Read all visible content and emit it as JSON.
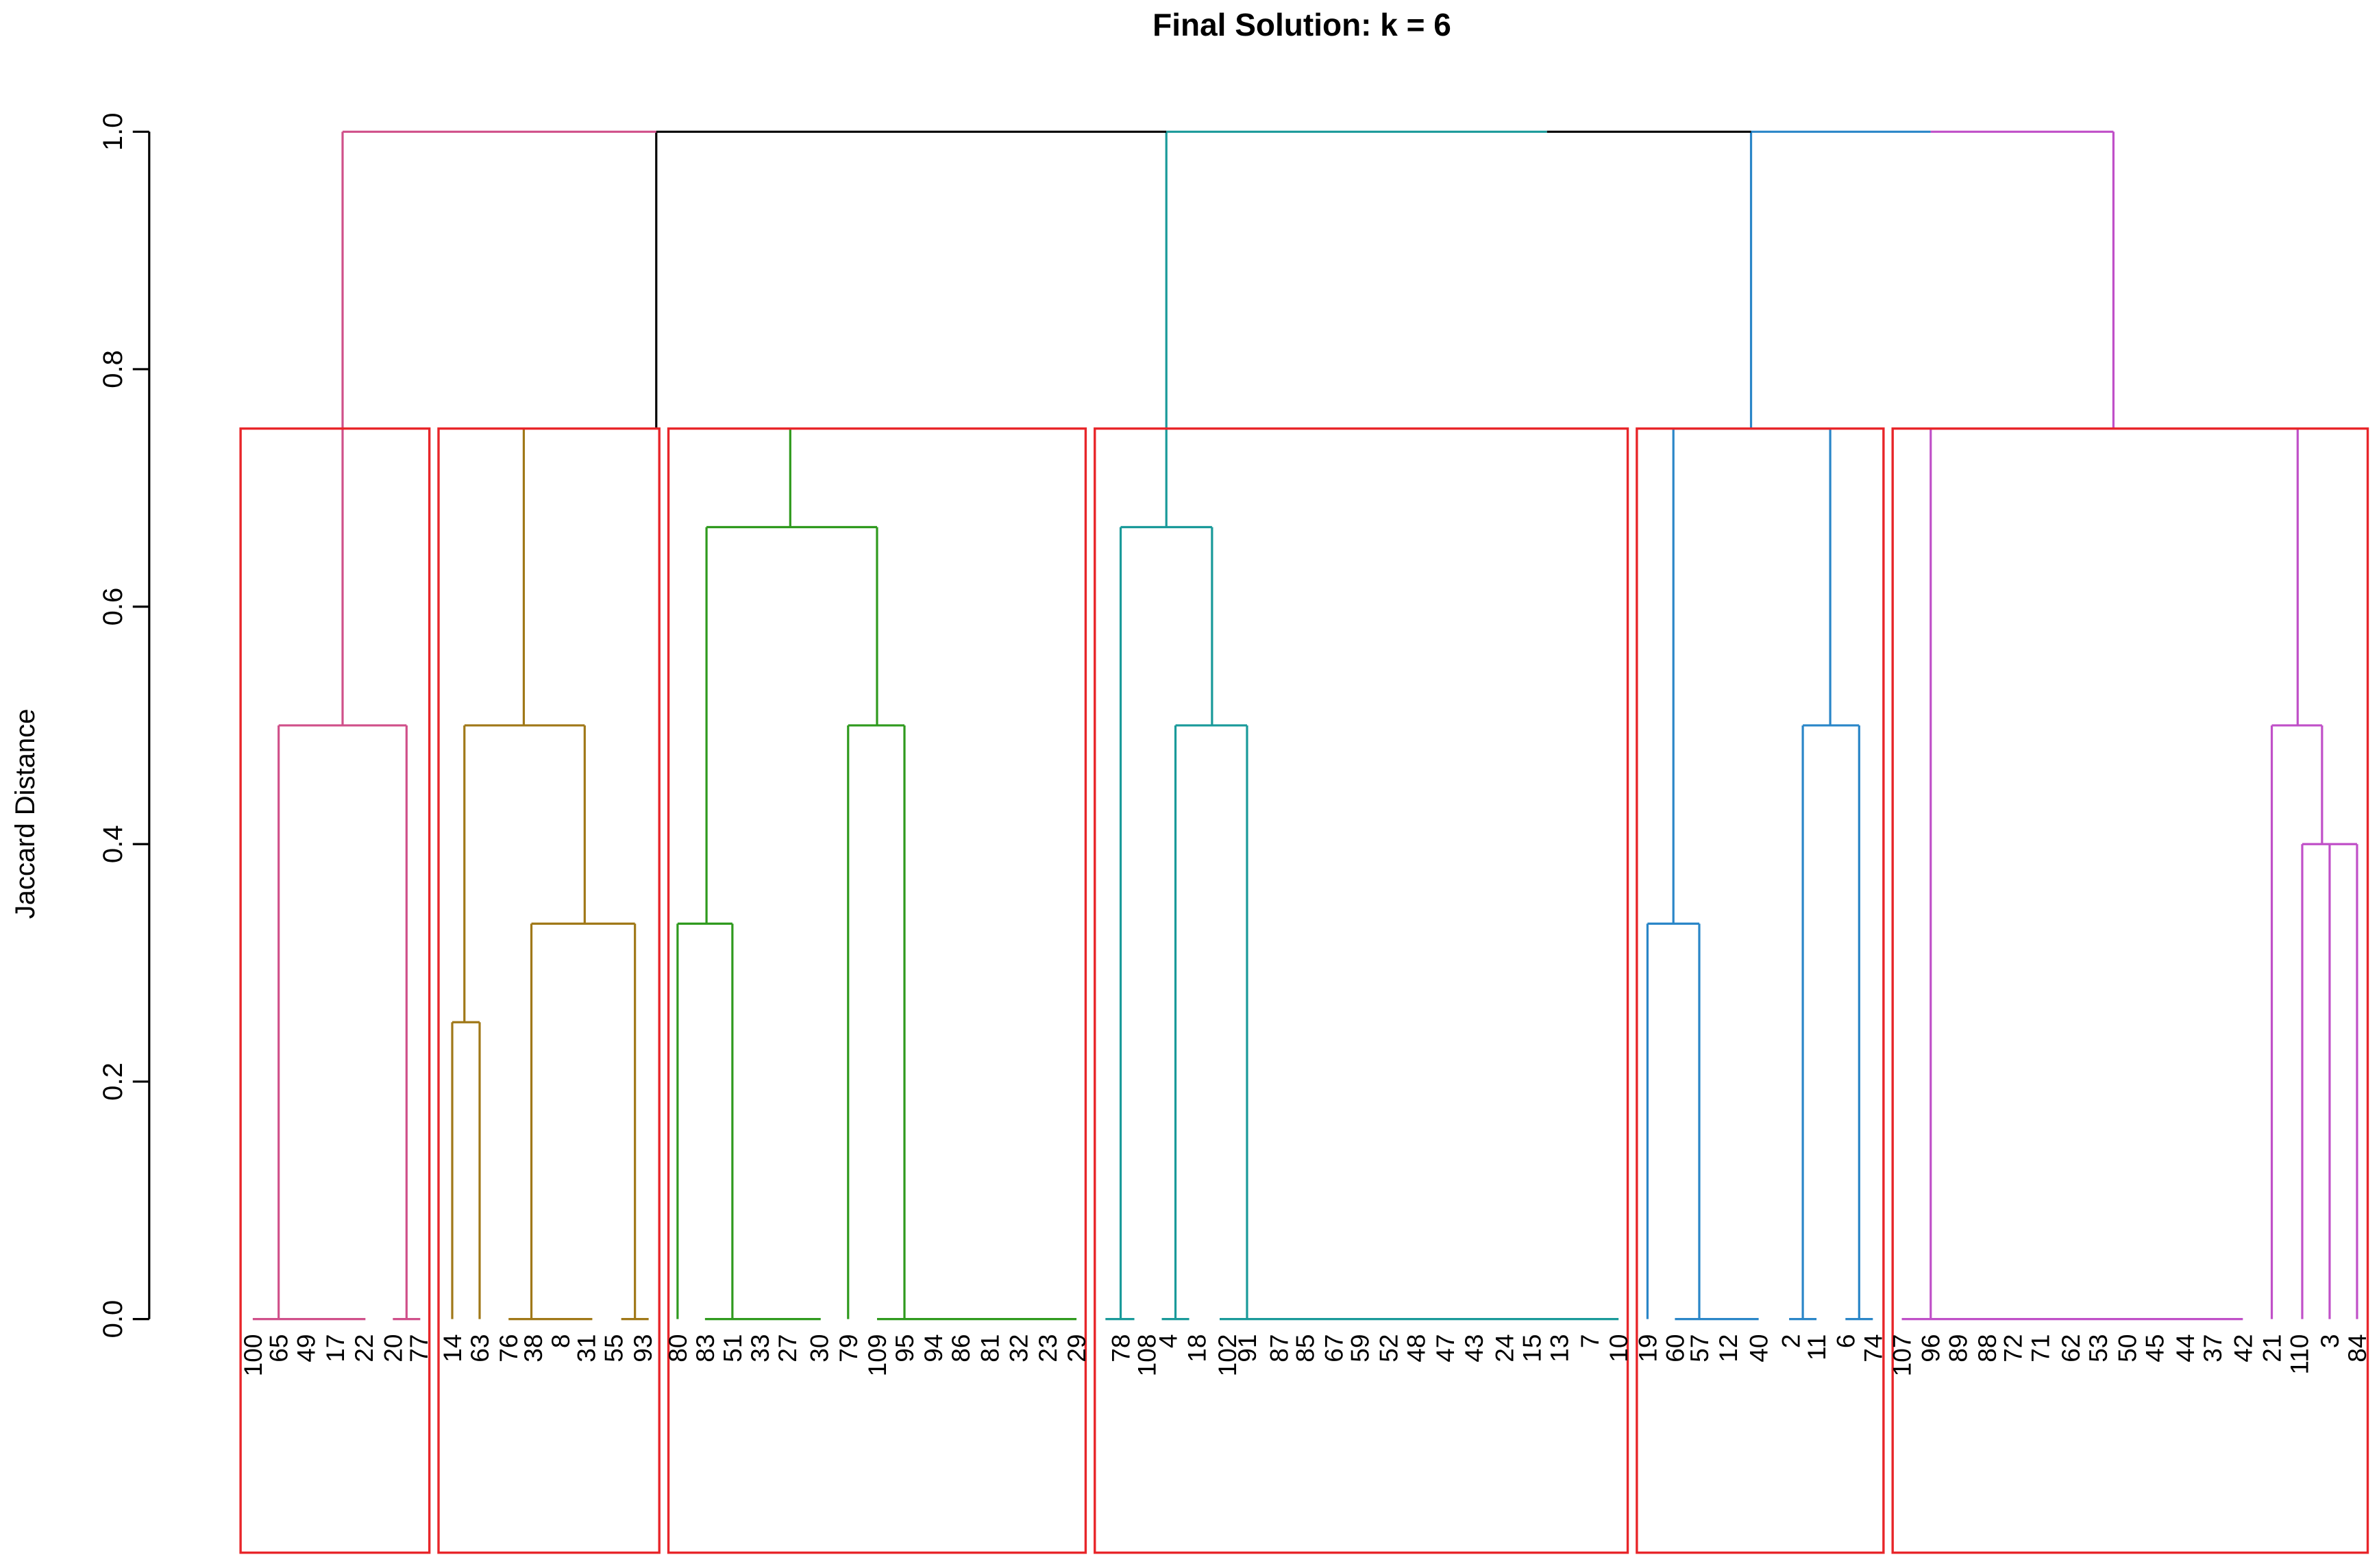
{
  "chart_data": {
    "type": "dendrogram",
    "title": "Final Solution: k = 6",
    "ylabel": "Jaccard Distance",
    "ylim": [
      0,
      1.0
    ],
    "yticks": [
      "0.0",
      "0.2",
      "0.4",
      "0.6",
      "0.8",
      "1.0"
    ],
    "cut_height": 0.75,
    "k": 6,
    "leaves": [
      "100",
      "65",
      "49",
      "17",
      "22",
      "20",
      "77",
      "14",
      "63",
      "76",
      "38",
      "8",
      "31",
      "55",
      "93",
      "80",
      "83",
      "51",
      "33",
      "27",
      "30",
      "79",
      "109",
      "95",
      "94",
      "86",
      "81",
      "32",
      "23",
      "29",
      "78",
      "108",
      "4",
      "18",
      "102",
      "91",
      "87",
      "85",
      "67",
      "59",
      "52",
      "48",
      "47",
      "43",
      "24",
      "15",
      "13",
      "7",
      "10",
      "19",
      "60",
      "57",
      "12",
      "40",
      "2",
      "11",
      "6",
      "74",
      "107",
      "96",
      "89",
      "88",
      "72",
      "71",
      "62",
      "53",
      "50",
      "45",
      "44",
      "37",
      "42",
      "21",
      "110",
      "3",
      "84"
    ],
    "clusters": [
      {
        "leaves": [
          "100",
          "65",
          "49",
          "17",
          "22",
          "20",
          "77"
        ],
        "color": "#d0508a"
      },
      {
        "leaves": [
          "14",
          "63",
          "76",
          "38",
          "8",
          "31",
          "55",
          "93"
        ],
        "color": "#a07818"
      },
      {
        "leaves": [
          "80",
          "83",
          "51",
          "33",
          "27",
          "30",
          "79",
          "109",
          "95",
          "94",
          "86",
          "81",
          "32",
          "23",
          "29"
        ],
        "color": "#2f9a1e"
      },
      {
        "leaves": [
          "78",
          "108",
          "4",
          "18",
          "102",
          "91",
          "87",
          "85",
          "67",
          "59",
          "52",
          "48",
          "47",
          "43",
          "24",
          "15",
          "13",
          "7",
          "10"
        ],
        "color": "#1a9a9a"
      },
      {
        "leaves": [
          "19",
          "60",
          "57",
          "12",
          "40",
          "2",
          "11",
          "6",
          "74"
        ],
        "color": "#2a86c8"
      },
      {
        "leaves": [
          "107",
          "96",
          "89",
          "88",
          "72",
          "71",
          "62",
          "53",
          "50",
          "45",
          "44",
          "37",
          "42",
          "21",
          "110",
          "3",
          "84"
        ],
        "color": "#c050c8"
      }
    ],
    "merge_heights": {
      "cluster_1": [
        0.0,
        0.5
      ],
      "cluster_2": [
        0.0,
        0.25,
        0.333,
        0.5
      ],
      "cluster_3": [
        0.0,
        0.333,
        0.5,
        0.667
      ],
      "cluster_4": [
        0.0,
        0.5,
        0.667
      ],
      "cluster_5": [
        0.0,
        0.333,
        0.5
      ],
      "cluster_6": [
        0.0,
        0.4,
        0.5
      ],
      "top_level": [
        1.0
      ]
    },
    "colors": {
      "box": "#e8262a",
      "root": "#000000"
    }
  }
}
